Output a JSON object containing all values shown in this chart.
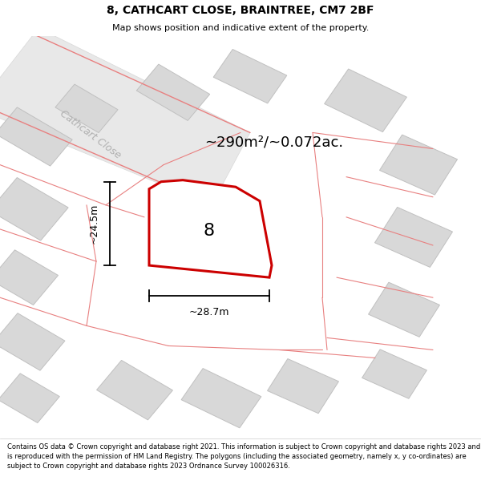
{
  "title": "8, CATHCART CLOSE, BRAINTREE, CM7 2BF",
  "subtitle": "Map shows position and indicative extent of the property.",
  "footer": "Contains OS data © Crown copyright and database right 2021. This information is subject to Crown copyright and database rights 2023 and is reproduced with the permission of HM Land Registry. The polygons (including the associated geometry, namely x, y co-ordinates) are subject to Crown copyright and database rights 2023 Ordnance Survey 100026316.",
  "area_label": "~290m²/~0.072ac.",
  "width_label": "~28.7m",
  "height_label": "~24.5m",
  "property_number": "8",
  "map_bg": "#f0f0f0",
  "road_fill": "#e4e4e4",
  "building_fill": "#d8d8d8",
  "building_edge": "#c0c0c0",
  "parcel_color": "#e88080",
  "highlight_stroke": "#cc0000",
  "street_label_color": "#b0b0b0",
  "street_label": "Cathcart Close",
  "title_fontsize": 10,
  "subtitle_fontsize": 8,
  "footer_fontsize": 6.0
}
